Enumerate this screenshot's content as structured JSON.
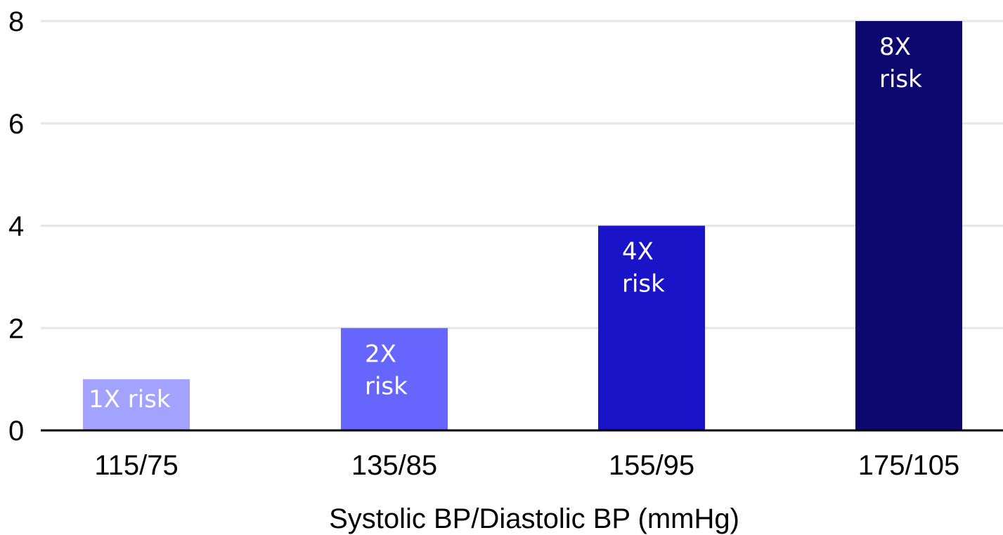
{
  "chart_data": {
    "type": "bar",
    "title": "",
    "xlabel": "Systolic BP/Diastolic BP (mmHg)",
    "ylabel": "",
    "ylim": [
      0,
      8
    ],
    "yticks": [
      0,
      2,
      4,
      6,
      8
    ],
    "grid": true,
    "categories": [
      "115/75",
      "135/85",
      "155/95",
      "175/105"
    ],
    "values": [
      1,
      2,
      4,
      8
    ],
    "bar_labels": [
      [
        "1X risk"
      ],
      [
        "2X",
        "risk"
      ],
      [
        "4X",
        "risk"
      ],
      [
        "8X",
        "risk"
      ]
    ],
    "colors": [
      "#a3a3ff",
      "#6666ff",
      "#1a14c8",
      "#0c0870"
    ]
  }
}
